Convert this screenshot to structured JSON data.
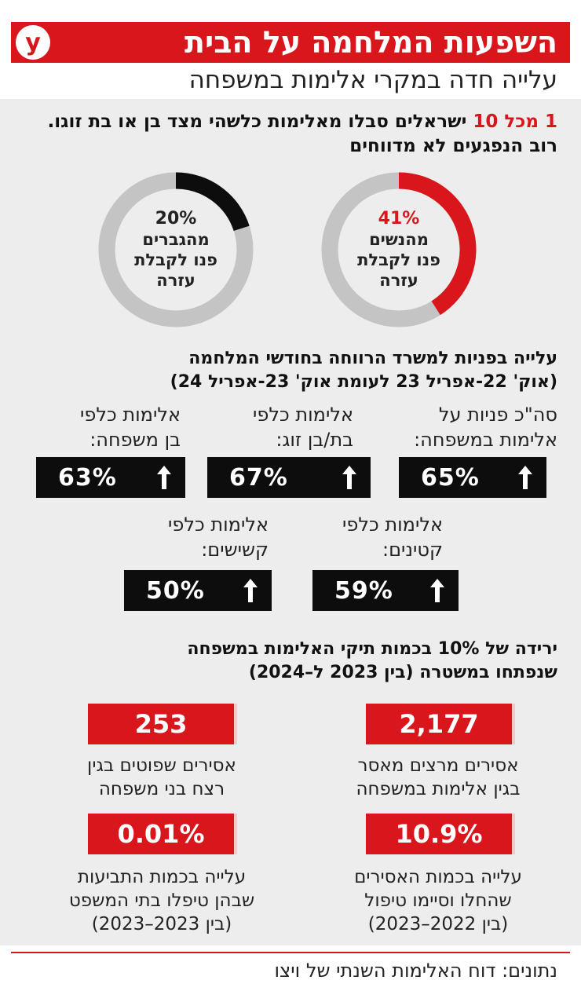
{
  "header": {
    "title": "השפעות המלחמה על הבית",
    "logo_letter": "y",
    "subtitle": "עלייה חדה במקרי אלימות במשפחה",
    "brand_color": "#d8161c"
  },
  "intro": {
    "highlight": "1 מכל 10",
    "rest": " ישראלים סבלו מאלימות כלשהי מצד בן או בת זוגו. רוב הנפגעים לא מדווחים"
  },
  "chart_data": [
    {
      "type": "pie",
      "title": "",
      "series": [
        {
          "name": "נשים",
          "pct_label": "41%",
          "value": 41,
          "text_lines": [
            "מהנשים",
            "פנו לקבלת",
            "עזרה"
          ],
          "color": "#d8161c"
        },
        {
          "name": "גברים",
          "pct_label": "20%",
          "value": 20,
          "text_lines": [
            "מהגברים",
            "פנו לקבלת",
            "עזרה"
          ],
          "color": "#0d0d0d"
        }
      ],
      "remainder_color": "#c4c4c4"
    },
    {
      "type": "bar",
      "title": "עלייה בפניות למשרד הרווחה בחודשי המלחמה (אוק' 22-אפריל 23 לעומת אוק' 23-אפריל 24)",
      "categories": [
        "סה\"כ פניות על אלימות במשפחה:",
        "אלימות כלפי בת/בן זוג:",
        "אלימות כלפי בן משפחה:",
        "אלימות כלפי קטינים:",
        "אלימות כלפי קשישים:"
      ],
      "values": [
        65,
        67,
        63,
        59,
        50
      ]
    }
  ],
  "welfare": {
    "title_line1": "עלייה בפניות למשרד הרווחה  בחודשי המלחמה",
    "title_line2": "(אוק' 22-אפריל 23 לעומת אוק' 23-אפריל 24)",
    "items": [
      {
        "line1": "סה\"כ פניות על",
        "line2": "אלימות במשפחה:",
        "value": "65%"
      },
      {
        "line1": "אלימות כלפי",
        "line2": "בת/בן זוג:",
        "value": "67%"
      },
      {
        "line1": "אלימות כלפי",
        "line2": "בן משפחה:",
        "value": "63%"
      },
      {
        "line1": "אלימות כלפי",
        "line2": "קטינים:",
        "value": "59%"
      },
      {
        "line1": "אלימות כלפי",
        "line2": "קשישים:",
        "value": "50%"
      }
    ]
  },
  "police": {
    "title_line1": "ירידה של 10% בכמות תיקי האלימות במשפחה",
    "title_line2": "שנפתחו במשטרה (בין 2023 ל–2024)",
    "items": [
      {
        "value": "2,177",
        "line1": "אסירים מרצים מאסר",
        "line2": "בגין אלימות במשפחה",
        "line3": ""
      },
      {
        "value": "253",
        "line1": "אסירים שפוטים בגין",
        "line2": "רצח בני משפחה",
        "line3": ""
      },
      {
        "value": "10.9%",
        "line1": "עלייה בכמות האסירים",
        "line2": "שהחלו וסיימו טיפול",
        "line3": "(בין 2022–2023)"
      },
      {
        "value": "0.01%",
        "line1": "עלייה בכמות התביעות",
        "line2": "שבהן טיפלו בתי המשפט",
        "line3": "(בין 2023–2023)"
      }
    ]
  },
  "footer": {
    "source": "נתונים: דוח האלימות השנתי של ויצו"
  }
}
